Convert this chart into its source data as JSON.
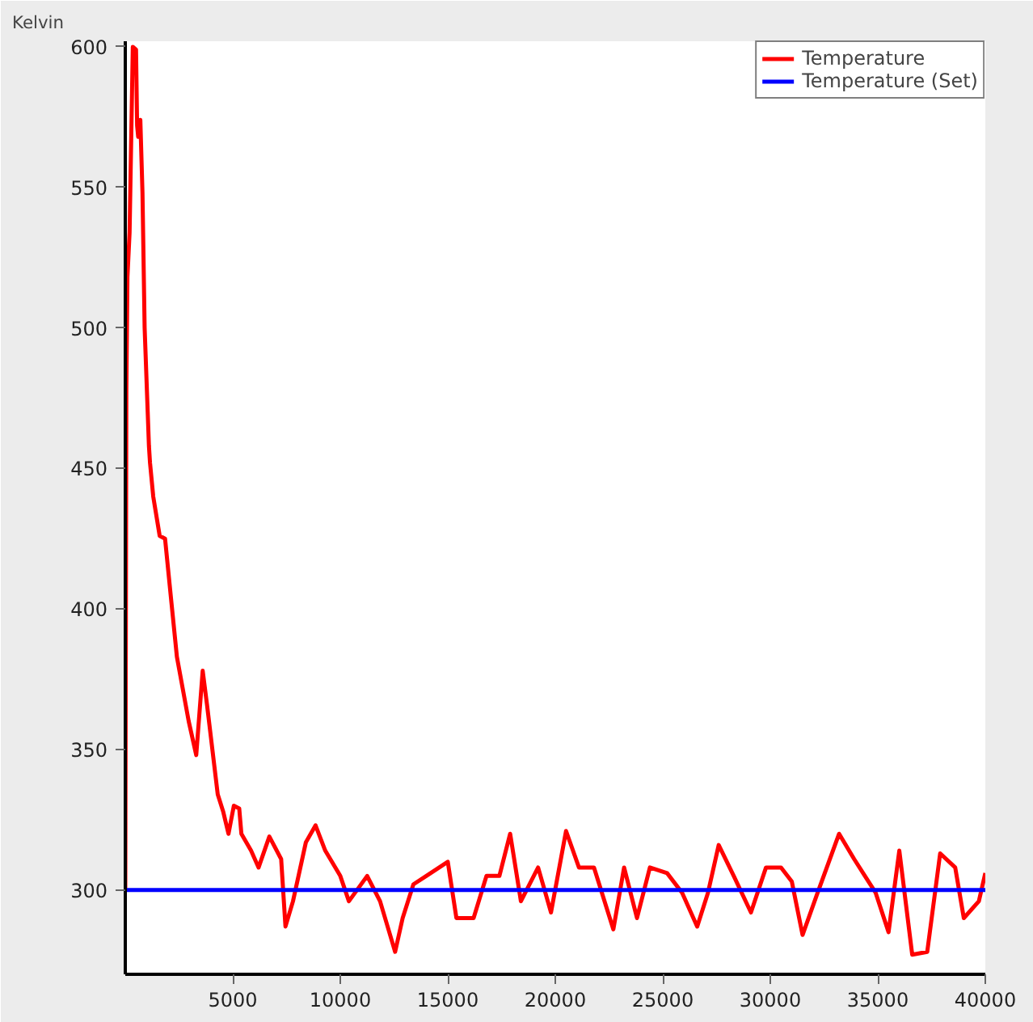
{
  "chart_data": {
    "type": "line",
    "ylabel": "Kelvin",
    "xlim": [
      0,
      40000
    ],
    "ylim": [
      270,
      602
    ],
    "xticks": [
      5000,
      10000,
      15000,
      20000,
      25000,
      30000,
      35000,
      40000
    ],
    "yticks": [
      300,
      350,
      400,
      450,
      500,
      550,
      600
    ],
    "grid": false,
    "legend": "top right",
    "line_style": "solid",
    "marker": "none",
    "series": [
      {
        "name": "Temperature",
        "color": "#ff0000",
        "x": [
          0,
          50,
          100,
          200,
          350,
          500,
          550,
          600,
          700,
          800,
          900,
          1100,
          1150,
          1300,
          1600,
          1850,
          2150,
          2400,
          2950,
          3300,
          3600,
          3800,
          4300,
          4550,
          4800,
          5050,
          5300,
          5400,
          5850,
          6200,
          6700,
          7250,
          7450,
          7800,
          8400,
          8850,
          9300,
          10000,
          10400,
          11250,
          11850,
          12200,
          12550,
          12900,
          13400,
          14000,
          15000,
          15400,
          16200,
          16800,
          17400,
          17900,
          18400,
          19200,
          19800,
          20500,
          21100,
          21800,
          22700,
          23200,
          23800,
          24400,
          25200,
          25900,
          26600,
          27100,
          27600,
          28300,
          29100,
          29800,
          30500,
          31000,
          31500,
          32200,
          33200,
          33900,
          34400,
          34900,
          35500,
          36000,
          36600,
          37300,
          37900,
          38600,
          39000,
          39700,
          40000
        ],
        "values": [
          300,
          478,
          518,
          534,
          600,
          599,
          572,
          568,
          574,
          548,
          500,
          458,
          452,
          440,
          426,
          425,
          402,
          383,
          360,
          348,
          378,
          366,
          334,
          328,
          320,
          330,
          329,
          320,
          314,
          308,
          319,
          311,
          287,
          296,
          317,
          323,
          314,
          305,
          296,
          305,
          296,
          287,
          278,
          290,
          302,
          305,
          310,
          290,
          290,
          305,
          305,
          320,
          296,
          308,
          292,
          321,
          308,
          308,
          286,
          308,
          290,
          308,
          306,
          299,
          287,
          299,
          316,
          305,
          292,
          308,
          308,
          303,
          284,
          299,
          320,
          311,
          305,
          299,
          285,
          314,
          277,
          278,
          313,
          308,
          290,
          296,
          306
        ]
      },
      {
        "name": "Temperature (Set)",
        "color": "#0000ff",
        "x": [
          0,
          40000
        ],
        "values": [
          300,
          300
        ]
      }
    ]
  }
}
